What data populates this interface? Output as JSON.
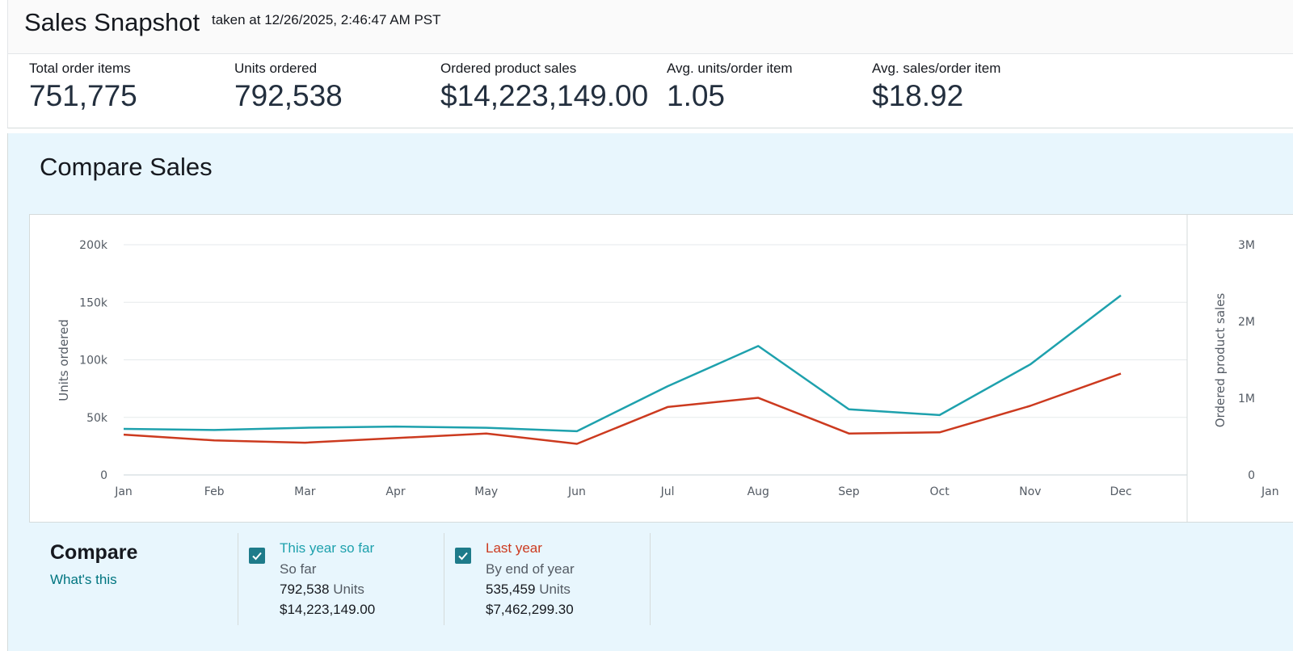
{
  "header": {
    "title": "Sales Snapshot",
    "timestamp": "taken at 12/26/2025, 2:46:47 AM PST"
  },
  "metrics": [
    {
      "label": "Total order items",
      "value": "751,775"
    },
    {
      "label": "Units ordered",
      "value": "792,538"
    },
    {
      "label": "Ordered product sales",
      "value": "$14,223,149.00"
    },
    {
      "label": "Avg. units/order item",
      "value": "1.05"
    },
    {
      "label": "Avg. sales/order item",
      "value": "$18.92"
    }
  ],
  "compare": {
    "title": "Compare Sales",
    "heading": "Compare",
    "whats_this": "What's this",
    "legend": [
      {
        "name": "This year so far",
        "sub": "So far",
        "units": "792,538",
        "units_label": "Units",
        "sales": "$14,223,149.00",
        "color": "#1ea1ad",
        "checked": true
      },
      {
        "name": "Last year",
        "sub": "By end of year",
        "units": "535,459",
        "units_label": "Units",
        "sales": "$7,462,299.30",
        "color": "#cc3a1f",
        "checked": true
      }
    ]
  },
  "colors": {
    "this_year": "#1ea1ad",
    "last_year": "#cc3a1f",
    "link": "#007580",
    "checkbox": "#1e7b8a",
    "panel_bg": "#e8f6fd"
  },
  "chart_data": [
    {
      "type": "line",
      "ylabel": "Units ordered",
      "ylim": [
        0,
        200000
      ],
      "yticks": [
        0,
        50000,
        100000,
        150000,
        200000
      ],
      "ytick_labels": [
        "0",
        "50k",
        "100k",
        "150k",
        "200k"
      ],
      "categories": [
        "Jan",
        "Feb",
        "Mar",
        "Apr",
        "May",
        "Jun",
        "Jul",
        "Aug",
        "Sep",
        "Oct",
        "Nov",
        "Dec"
      ],
      "grid": true,
      "series": [
        {
          "name": "This year so far",
          "color": "#1ea1ad",
          "values": [
            40000,
            39000,
            41000,
            42000,
            41000,
            38000,
            77000,
            112000,
            57000,
            52000,
            96000,
            156000
          ]
        },
        {
          "name": "Last year",
          "color": "#cc3a1f",
          "values": [
            35000,
            30000,
            28000,
            32000,
            36000,
            27000,
            59000,
            67000,
            36000,
            37000,
            60000,
            88000
          ]
        }
      ]
    },
    {
      "type": "line",
      "ylabel": "Ordered product sales",
      "ytick_labels": [
        "0",
        "1M",
        "2M",
        "3M"
      ],
      "ylim": [
        0,
        3000000
      ]
    }
  ]
}
